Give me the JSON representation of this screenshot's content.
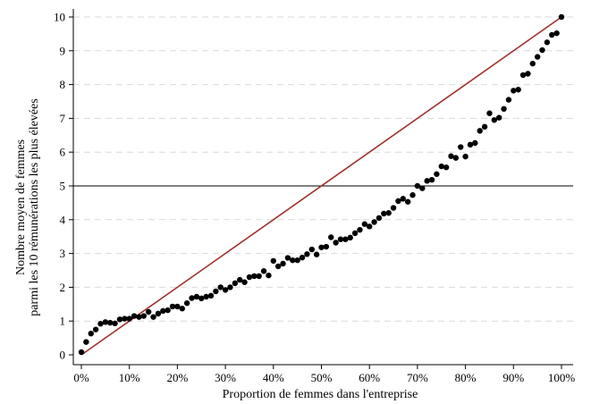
{
  "chart_data": {
    "type": "scatter",
    "title": "",
    "xlabel": "Proportion de femmes dans l'entreprise",
    "ylabel_lines": [
      "Nombre moyen de femmes",
      "parmi les 10 rémunérations les plus élevées"
    ],
    "xlim": [
      0,
      100
    ],
    "ylim": [
      0,
      10
    ],
    "x_ticks": [
      0,
      10,
      20,
      30,
      40,
      50,
      60,
      70,
      80,
      90,
      100
    ],
    "x_tick_labels": [
      "0%",
      "10%",
      "20%",
      "30%",
      "40%",
      "50%",
      "60%",
      "70%",
      "80%",
      "90%",
      "100%"
    ],
    "y_ticks": [
      0,
      1,
      2,
      3,
      4,
      5,
      6,
      7,
      8,
      9,
      10
    ],
    "y_tick_labels": [
      "0",
      "1",
      "2",
      "3",
      "4",
      "5",
      "6",
      "7",
      "8",
      "9",
      "10"
    ],
    "grid": "horizontal dashed",
    "colors": {
      "points": "#000000",
      "diagonal": "#a0312e",
      "reference": "#000000",
      "grid": "#d9d9d9"
    },
    "reference_line": {
      "y": 5
    },
    "diagonal_line": {
      "from": [
        0,
        0
      ],
      "to": [
        100,
        10
      ]
    },
    "points": {
      "x": [
        0,
        1,
        2,
        3,
        4,
        5,
        6,
        7,
        8,
        9,
        10,
        11,
        12,
        13,
        14,
        15,
        16,
        17,
        18,
        19,
        20,
        21,
        22,
        23,
        24,
        25,
        26,
        27,
        28,
        29,
        30,
        31,
        32,
        33,
        34,
        35,
        36,
        37,
        38,
        39,
        40,
        41,
        42,
        43,
        44,
        45,
        46,
        47,
        48,
        49,
        50,
        51,
        52,
        53,
        54,
        55,
        56,
        57,
        58,
        59,
        60,
        61,
        62,
        63,
        64,
        65,
        66,
        67,
        68,
        69,
        70,
        71,
        72,
        73,
        74,
        75,
        76,
        77,
        78,
        79,
        80,
        81,
        82,
        83,
        84,
        85,
        86,
        87,
        88,
        89,
        90,
        91,
        92,
        93,
        94,
        95,
        96,
        97,
        98,
        99,
        100
      ],
      "y": [
        0.08,
        0.38,
        0.63,
        0.75,
        0.92,
        0.97,
        0.95,
        0.93,
        1.05,
        1.07,
        1.07,
        1.15,
        1.12,
        1.15,
        1.27,
        1.12,
        1.22,
        1.3,
        1.32,
        1.43,
        1.43,
        1.37,
        1.53,
        1.68,
        1.72,
        1.67,
        1.72,
        1.75,
        1.88,
        2.0,
        1.92,
        2.0,
        2.12,
        2.22,
        2.15,
        2.3,
        2.33,
        2.33,
        2.48,
        2.35,
        2.78,
        2.62,
        2.7,
        2.87,
        2.8,
        2.8,
        2.88,
        2.98,
        3.12,
        2.97,
        3.18,
        3.2,
        3.48,
        3.32,
        3.42,
        3.42,
        3.47,
        3.6,
        3.7,
        3.87,
        3.8,
        3.93,
        4.05,
        4.18,
        4.2,
        4.35,
        4.55,
        4.62,
        4.53,
        4.73,
        5.0,
        4.93,
        5.15,
        5.18,
        5.35,
        5.58,
        5.55,
        5.88,
        5.83,
        6.15,
        5.87,
        6.22,
        6.27,
        6.63,
        6.75,
        7.15,
        6.95,
        7.02,
        7.28,
        7.55,
        7.82,
        7.85,
        8.28,
        8.32,
        8.62,
        8.82,
        9.02,
        9.25,
        9.47,
        9.52,
        10.0
      ]
    }
  }
}
